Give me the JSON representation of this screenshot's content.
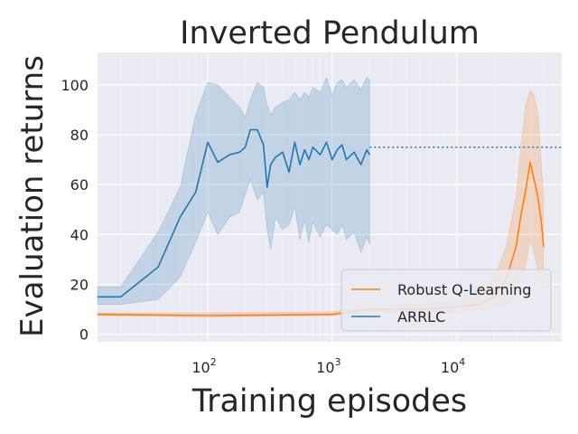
{
  "chart_data": {
    "type": "line",
    "title": "Inverted Pendulum",
    "xlabel": "Training episodes",
    "ylabel": "Evaluation returns",
    "x_scale": "log",
    "xlim": [
      13,
      70000
    ],
    "ylim": [
      -3,
      113
    ],
    "grid": true,
    "legend_position": "lower-right",
    "x_ticks": [
      {
        "value": 100,
        "base": "10",
        "exp": "2"
      },
      {
        "value": 1000,
        "base": "10",
        "exp": "3"
      },
      {
        "value": 10000,
        "base": "10",
        "exp": "4"
      }
    ],
    "y_ticks": [
      0,
      20,
      40,
      60,
      80,
      100
    ],
    "colors": {
      "background": "#eaeaf2",
      "grid": "#ffffff",
      "arrlc": "#1f77b4",
      "robust": "#ff7f0e"
    },
    "reference_line": {
      "y": 75,
      "x_from": 2000,
      "x_to": 70000,
      "style": "dotted",
      "color": "#1f77b4"
    },
    "series": [
      {
        "name": "ARRLC",
        "color": "#1f77b4",
        "x": [
          13,
          20,
          40,
          60,
          80,
          100,
          120,
          150,
          180,
          200,
          220,
          250,
          280,
          300,
          320,
          350,
          400,
          450,
          500,
          550,
          600,
          650,
          700,
          800,
          900,
          1000,
          1100,
          1200,
          1300,
          1500,
          1700,
          1900,
          2000
        ],
        "y": [
          15,
          15,
          27,
          47,
          57,
          77,
          69,
          72,
          73,
          75,
          82,
          82,
          76,
          59,
          68,
          71,
          73,
          65,
          77,
          68,
          74,
          70,
          75,
          72,
          77,
          70,
          74,
          76,
          70,
          73,
          68,
          74,
          72
        ],
        "band_upper": [
          19,
          19,
          41,
          59,
          88,
          101,
          100,
          95,
          91,
          87,
          94,
          101,
          99,
          92,
          88,
          91,
          93,
          94,
          97,
          94,
          97,
          95,
          99,
          97,
          103,
          96,
          101,
          102,
          99,
          102,
          98,
          103,
          102
        ],
        "band_lower": [
          12,
          12,
          14,
          23,
          37,
          49,
          40,
          47,
          49,
          56,
          62,
          54,
          57,
          42,
          34,
          47,
          42,
          44,
          51,
          38,
          46,
          37,
          45,
          39,
          44,
          42,
          40,
          44,
          38,
          41,
          33,
          39,
          36
        ]
      },
      {
        "name": "Robust Q-Learning",
        "color": "#ff7f0e",
        "x": [
          13,
          100,
          1000,
          2000,
          5000,
          10000,
          15000,
          20000,
          25000,
          30000,
          33000,
          36000,
          39000,
          42000,
          45000,
          48000,
          50000
        ],
        "y": [
          8,
          7.5,
          8,
          10,
          10,
          11,
          12,
          15,
          22,
          35,
          48,
          58,
          69,
          62,
          55,
          45,
          35
        ],
        "band_upper": [
          8.5,
          8.5,
          9,
          11,
          12,
          13,
          16,
          22,
          35,
          55,
          75,
          92,
          98,
          96,
          88,
          68,
          55
        ],
        "band_lower": [
          7.5,
          7,
          7.5,
          9,
          9,
          9,
          10,
          11,
          12,
          16,
          22,
          28,
          38,
          32,
          26,
          20,
          18
        ]
      }
    ]
  }
}
